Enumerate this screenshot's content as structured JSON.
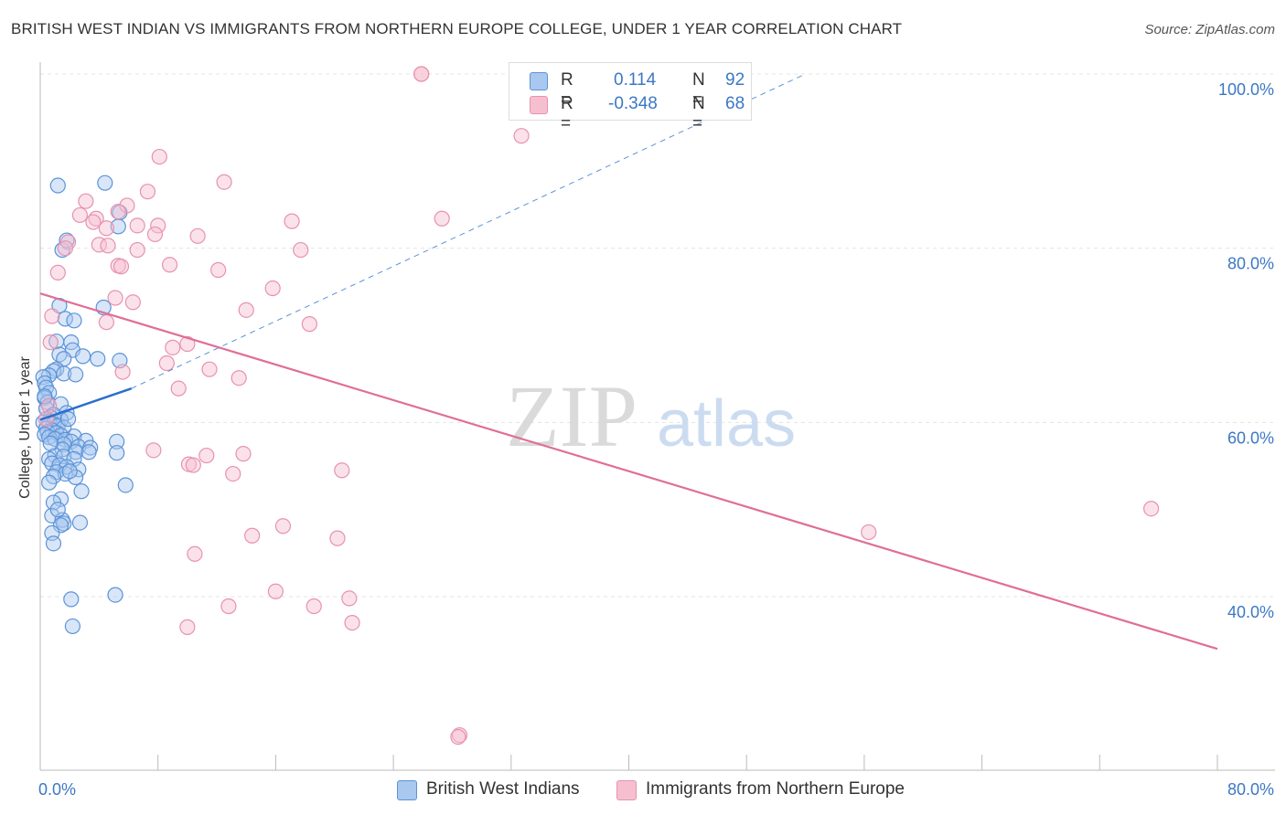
{
  "header": {
    "title": "BRITISH WEST INDIAN VS IMMIGRANTS FROM NORTHERN EUROPE COLLEGE, UNDER 1 YEAR CORRELATION CHART",
    "source": "Source: ZipAtlas.com"
  },
  "watermark": {
    "zip": "ZIP",
    "atlas": "atlas"
  },
  "colors": {
    "blue_fill": "#a9c8ef",
    "blue_stroke": "#5b93d8",
    "blue_line": "#2a6fcc",
    "pink_fill": "#f6bfd0",
    "pink_stroke": "#e792ae",
    "pink_line": "#e06e97",
    "tick_text": "#3b78c4",
    "grid": "#e4e4e4"
  },
  "legend_top": {
    "rows": [
      {
        "r_label": "R =",
        "r_value": "0.114",
        "n_label": "N =",
        "n_value": "92",
        "color": "#a9c8ef"
      },
      {
        "r_label": "R =",
        "r_value": "-0.348",
        "n_label": "N =",
        "n_value": "68",
        "color": "#f6bfd0"
      }
    ]
  },
  "legend_bottom": [
    {
      "label": "British West Indians",
      "color": "#a9c8ef"
    },
    {
      "label": "Immigrants from Northern Europe",
      "color": "#f6bfd0"
    }
  ],
  "chart_data": {
    "type": "scatter",
    "title": "BRITISH WEST INDIAN VS IMMIGRANTS FROM NORTHERN EUROPE COLLEGE, UNDER 1 YEAR CORRELATION CHART",
    "xlabel": "",
    "ylabel": "College, Under 1 year",
    "xlim": [
      0,
      80
    ],
    "ylim": [
      20,
      104
    ],
    "x_tick_labels": [
      "0.0%",
      "80.0%"
    ],
    "y_ticks": [
      40,
      60,
      80,
      100
    ],
    "y_tick_labels": [
      "40.0%",
      "60.0%",
      "80.0%",
      "100.0%"
    ],
    "grid": true,
    "legend": "bottom",
    "series": [
      {
        "name": "British West Indians",
        "color": "#a9c8ef",
        "trend": {
          "x": [
            0,
            6.2
          ],
          "y": [
            60.3,
            63.9
          ],
          "dashed_extension": {
            "x": [
              6.2,
              52
            ],
            "y": [
              63.9,
              100
            ]
          }
        },
        "points": [
          [
            1.2,
            87.2
          ],
          [
            4.4,
            87.5
          ],
          [
            5.4,
            84.1
          ],
          [
            5.3,
            82.5
          ],
          [
            1.5,
            79.8
          ],
          [
            1.8,
            80.9
          ],
          [
            1.3,
            73.4
          ],
          [
            4.3,
            73.2
          ],
          [
            1.7,
            71.9
          ],
          [
            2.3,
            71.7
          ],
          [
            1.1,
            69.3
          ],
          [
            2.1,
            69.2
          ],
          [
            2.2,
            68.3
          ],
          [
            1.3,
            67.8
          ],
          [
            2.9,
            67.6
          ],
          [
            1.6,
            67.3
          ],
          [
            3.9,
            67.3
          ],
          [
            5.4,
            67.1
          ],
          [
            1.1,
            66.1
          ],
          [
            0.9,
            65.9
          ],
          [
            1.6,
            65.6
          ],
          [
            2.4,
            65.5
          ],
          [
            0.6,
            65.4
          ],
          [
            0.2,
            65.2
          ],
          [
            0.3,
            64.5
          ],
          [
            0.4,
            64.0
          ],
          [
            0.6,
            63.4
          ],
          [
            0.3,
            62.8
          ],
          [
            0.5,
            62.3
          ],
          [
            1.4,
            62.1
          ],
          [
            0.4,
            61.6
          ],
          [
            1.8,
            61.1
          ],
          [
            0.9,
            60.9
          ],
          [
            0.7,
            60.6
          ],
          [
            1.4,
            60.3
          ],
          [
            0.6,
            60.1
          ],
          [
            0.2,
            60.0
          ],
          [
            0.9,
            59.8
          ],
          [
            1.2,
            59.6
          ],
          [
            1.6,
            59.4
          ],
          [
            0.4,
            59.3
          ],
          [
            0.8,
            59.1
          ],
          [
            0.5,
            58.9
          ],
          [
            1.1,
            58.8
          ],
          [
            0.3,
            58.6
          ],
          [
            1.4,
            58.5
          ],
          [
            2.3,
            58.4
          ],
          [
            0.6,
            58.3
          ],
          [
            1.0,
            58.1
          ],
          [
            1.7,
            58.0
          ],
          [
            2.1,
            57.8
          ],
          [
            3.1,
            57.9
          ],
          [
            5.2,
            57.8
          ],
          [
            1.6,
            57.5
          ],
          [
            2.6,
            57.2
          ],
          [
            3.4,
            57.1
          ],
          [
            1.5,
            56.9
          ],
          [
            2.4,
            56.6
          ],
          [
            3.3,
            56.6
          ],
          [
            5.2,
            56.5
          ],
          [
            1.0,
            56.2
          ],
          [
            1.6,
            56.1
          ],
          [
            0.6,
            55.8
          ],
          [
            2.3,
            55.8
          ],
          [
            0.8,
            55.3
          ],
          [
            1.3,
            55.1
          ],
          [
            1.8,
            54.9
          ],
          [
            2.6,
            54.6
          ],
          [
            1.1,
            54.3
          ],
          [
            1.7,
            54.1
          ],
          [
            0.9,
            53.8
          ],
          [
            2.4,
            53.7
          ],
          [
            0.6,
            53.1
          ],
          [
            5.8,
            52.8
          ],
          [
            2.8,
            52.1
          ],
          [
            1.4,
            51.2
          ],
          [
            0.9,
            50.8
          ],
          [
            0.8,
            49.3
          ],
          [
            1.5,
            48.8
          ],
          [
            1.6,
            48.4
          ],
          [
            2.7,
            48.5
          ],
          [
            1.4,
            48.2
          ],
          [
            0.8,
            47.3
          ],
          [
            0.9,
            46.1
          ],
          [
            5.1,
            40.2
          ],
          [
            2.1,
            39.7
          ],
          [
            2.2,
            36.6
          ],
          [
            0.3,
            63.0
          ],
          [
            1.9,
            60.4
          ],
          [
            0.7,
            57.6
          ],
          [
            2.0,
            54.4
          ],
          [
            1.2,
            50.0
          ]
        ]
      },
      {
        "name": "Immigrants from Northern Europe",
        "color": "#f6bfd0",
        "trend": {
          "x": [
            0,
            80
          ],
          "y": [
            74.8,
            34.0
          ]
        },
        "points": [
          [
            25.9,
            100
          ],
          [
            32.7,
            92.9
          ],
          [
            8.1,
            90.5
          ],
          [
            12.5,
            87.6
          ],
          [
            7.3,
            86.5
          ],
          [
            3.1,
            85.4
          ],
          [
            5.9,
            84.9
          ],
          [
            5.3,
            84.2
          ],
          [
            2.7,
            83.8
          ],
          [
            3.8,
            83.4
          ],
          [
            17.1,
            83.1
          ],
          [
            27.3,
            83.4
          ],
          [
            6.6,
            82.6
          ],
          [
            8.0,
            82.6
          ],
          [
            4.5,
            82.3
          ],
          [
            7.8,
            81.6
          ],
          [
            10.7,
            81.4
          ],
          [
            1.9,
            80.7
          ],
          [
            4.0,
            80.4
          ],
          [
            4.6,
            80.3
          ],
          [
            1.7,
            80.0
          ],
          [
            6.6,
            79.8
          ],
          [
            17.7,
            79.8
          ],
          [
            5.3,
            78.0
          ],
          [
            8.8,
            78.1
          ],
          [
            12.1,
            77.5
          ],
          [
            1.2,
            77.2
          ],
          [
            15.8,
            75.4
          ],
          [
            5.1,
            74.3
          ],
          [
            6.3,
            73.8
          ],
          [
            14.0,
            72.9
          ],
          [
            0.8,
            72.2
          ],
          [
            4.5,
            71.5
          ],
          [
            18.3,
            71.3
          ],
          [
            0.7,
            69.2
          ],
          [
            10.0,
            69.0
          ],
          [
            9.0,
            68.6
          ],
          [
            8.6,
            66.8
          ],
          [
            11.5,
            66.1
          ],
          [
            5.6,
            65.8
          ],
          [
            13.5,
            65.1
          ],
          [
            9.4,
            63.9
          ],
          [
            7.7,
            56.8
          ],
          [
            13.8,
            56.4
          ],
          [
            11.3,
            56.2
          ],
          [
            10.1,
            55.2
          ],
          [
            10.4,
            55.1
          ],
          [
            13.1,
            54.1
          ],
          [
            20.5,
            54.5
          ],
          [
            56.3,
            47.4
          ],
          [
            75.5,
            50.1
          ],
          [
            16.5,
            48.1
          ],
          [
            14.4,
            47.0
          ],
          [
            20.2,
            46.7
          ],
          [
            10.5,
            44.9
          ],
          [
            16.0,
            40.6
          ],
          [
            21.0,
            39.8
          ],
          [
            12.8,
            38.9
          ],
          [
            18.6,
            38.9
          ],
          [
            10.0,
            36.5
          ],
          [
            21.2,
            37.0
          ],
          [
            28.5,
            24.1
          ],
          [
            28.4,
            23.9
          ],
          [
            0.6,
            61.9
          ],
          [
            0.4,
            60.4
          ],
          [
            25.9,
            100.0
          ],
          [
            5.5,
            77.9
          ],
          [
            3.6,
            83.0
          ]
        ]
      }
    ]
  }
}
